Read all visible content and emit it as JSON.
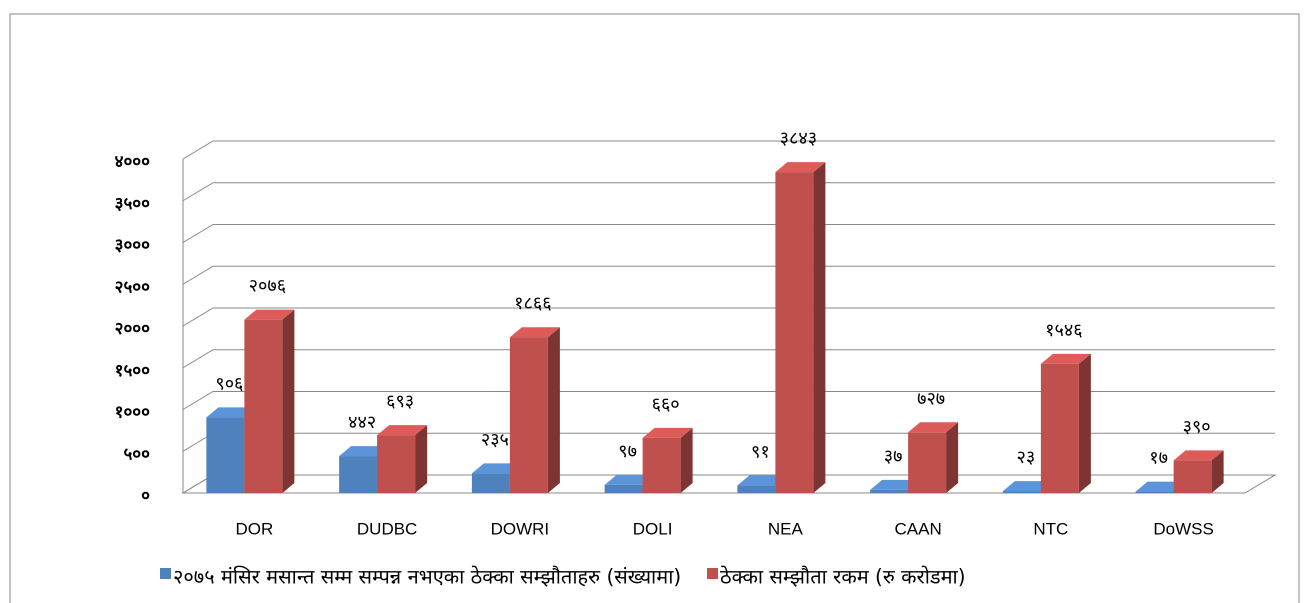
{
  "chart_data": {
    "type": "bar3d",
    "categories": [
      "DOR",
      "DUDBC",
      "DOWRI",
      "DOLI",
      "NEA",
      "CAAN",
      "NTC",
      "DoWSS"
    ],
    "series": [
      {
        "name": "२०७५ मंसिर मसान्त सम्म सम्पन्न नभएका ठेक्का सम्झौताहरु (संख्यामा)",
        "color": "#4f81bd",
        "values": [
          906,
          442,
          235,
          97,
          91,
          37,
          23,
          17
        ],
        "value_labels": [
          "९०६",
          "४४२",
          "२३५",
          "९७",
          "९१",
          "३७",
          "२३",
          "१७"
        ]
      },
      {
        "name": "ठेक्का सम्झौता रकम (रु करोडमा)",
        "color": "#c0504d",
        "values": [
          2076,
          693,
          1866,
          660,
          3843,
          727,
          1546,
          390
        ],
        "value_labels": [
          "२०७६",
          "६९३",
          "१८६६",
          "६६०",
          "३८४३",
          "७२७",
          "१५४६",
          "३९०"
        ]
      }
    ],
    "ylim": [
      0,
      4000
    ],
    "yticks": [
      {
        "value": 0,
        "label": "०"
      },
      {
        "value": 500,
        "label": "५००"
      },
      {
        "value": 1000,
        "label": "१०००"
      },
      {
        "value": 1500,
        "label": "१५००"
      },
      {
        "value": 2000,
        "label": "२०००"
      },
      {
        "value": 2500,
        "label": "२५००"
      },
      {
        "value": 3000,
        "label": "३०००"
      },
      {
        "value": 3500,
        "label": "३५००"
      },
      {
        "value": 4000,
        "label": "४०००"
      }
    ],
    "grid": true,
    "legend": "bottom"
  }
}
